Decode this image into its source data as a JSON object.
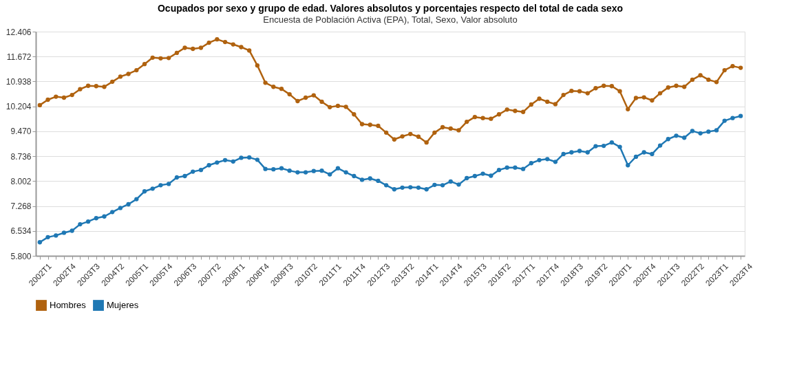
{
  "chart_data": {
    "type": "line",
    "title": "Ocupados por sexo y grupo de edad. Valores absolutos y porcentajes respecto del total de cada sexo",
    "subtitle": "Encuesta de Población Activa (EPA), Total, Sexo, Valor absoluto",
    "categories": [
      "2002T1",
      null,
      null,
      "2002T4",
      null,
      null,
      "2003T3",
      null,
      null,
      "2004T2",
      null,
      null,
      "2005T1",
      null,
      null,
      "2005T4",
      null,
      null,
      "2006T3",
      null,
      null,
      "2007T2",
      null,
      null,
      "2008T1",
      null,
      null,
      "2008T4",
      null,
      null,
      "2009T3",
      null,
      null,
      "2010T2",
      null,
      null,
      "2011T1",
      null,
      null,
      "2011T4",
      null,
      null,
      "2012T3",
      null,
      null,
      "2013T2",
      null,
      null,
      "2014T1",
      null,
      null,
      "2014T4",
      null,
      null,
      "2015T3",
      null,
      null,
      "2016T2",
      null,
      null,
      "2017T1",
      null,
      null,
      "2017T4",
      null,
      null,
      "2018T3",
      null,
      null,
      "2019T2",
      null,
      null,
      "2020T1",
      null,
      null,
      "2020T4",
      null,
      null,
      "2021T3",
      null,
      null,
      "2022T2",
      null,
      null,
      "2023T1",
      null,
      null,
      "2023T4"
    ],
    "series": [
      {
        "name": "Hombres",
        "color": "#b0620f",
        "values": [
          10240,
          10400,
          10490,
          10460,
          10540,
          10710,
          10810,
          10800,
          10780,
          10930,
          11080,
          11160,
          11270,
          11450,
          11640,
          11620,
          11630,
          11780,
          11930,
          11900,
          11930,
          12080,
          12180,
          12100,
          12030,
          11950,
          11850,
          11410,
          10900,
          10780,
          10720,
          10560,
          10360,
          10460,
          10530,
          10340,
          10180,
          10220,
          10190,
          9970,
          9680,
          9660,
          9630,
          9430,
          9230,
          9320,
          9390,
          9310,
          9140,
          9430,
          9590,
          9550,
          9500,
          9750,
          9890,
          9860,
          9840,
          9970,
          10110,
          10070,
          10040,
          10260,
          10430,
          10340,
          10270,
          10540,
          10660,
          10650,
          10590,
          10740,
          10810,
          10800,
          10650,
          10120,
          10450,
          10470,
          10380,
          10590,
          10760,
          10810,
          10780,
          10990,
          11120,
          10990,
          10920,
          11270,
          11390,
          11340
        ]
      },
      {
        "name": "Mujeres",
        "color": "#1f78b4",
        "values": [
          6200,
          6350,
          6400,
          6480,
          6540,
          6730,
          6810,
          6910,
          6960,
          7090,
          7210,
          7320,
          7470,
          7700,
          7780,
          7880,
          7920,
          8110,
          8150,
          8280,
          8330,
          8470,
          8550,
          8620,
          8580,
          8690,
          8700,
          8630,
          8360,
          8350,
          8380,
          8310,
          8260,
          8260,
          8300,
          8310,
          8200,
          8380,
          8260,
          8150,
          8040,
          8080,
          8010,
          7880,
          7760,
          7810,
          7820,
          7810,
          7760,
          7890,
          7880,
          7990,
          7900,
          8090,
          8150,
          8220,
          8160,
          8330,
          8400,
          8400,
          8360,
          8530,
          8620,
          8650,
          8570,
          8800,
          8850,
          8890,
          8850,
          9030,
          9040,
          9140,
          9010,
          8470,
          8720,
          8850,
          8800,
          9050,
          9240,
          9340,
          9280,
          9480,
          9410,
          9460,
          9500,
          9780,
          9860,
          9920
        ]
      }
    ],
    "ylim": [
      5800,
      12406
    ],
    "yticks": [
      {
        "value": 5800,
        "label": "5.800"
      },
      {
        "value": 6534,
        "label": "6.534"
      },
      {
        "value": 7268,
        "label": "7.268"
      },
      {
        "value": 8002,
        "label": "8.002"
      },
      {
        "value": 8736,
        "label": "8.736"
      },
      {
        "value": 9470,
        "label": "9.470"
      },
      {
        "value": 10204,
        "label": "10.204"
      },
      {
        "value": 10938,
        "label": "10.938"
      },
      {
        "value": 11672,
        "label": "11.672"
      },
      {
        "value": 12406,
        "label": "12.406"
      }
    ],
    "grid": "y",
    "legend": "bottom",
    "marker": "circle",
    "line_style": "solid"
  }
}
